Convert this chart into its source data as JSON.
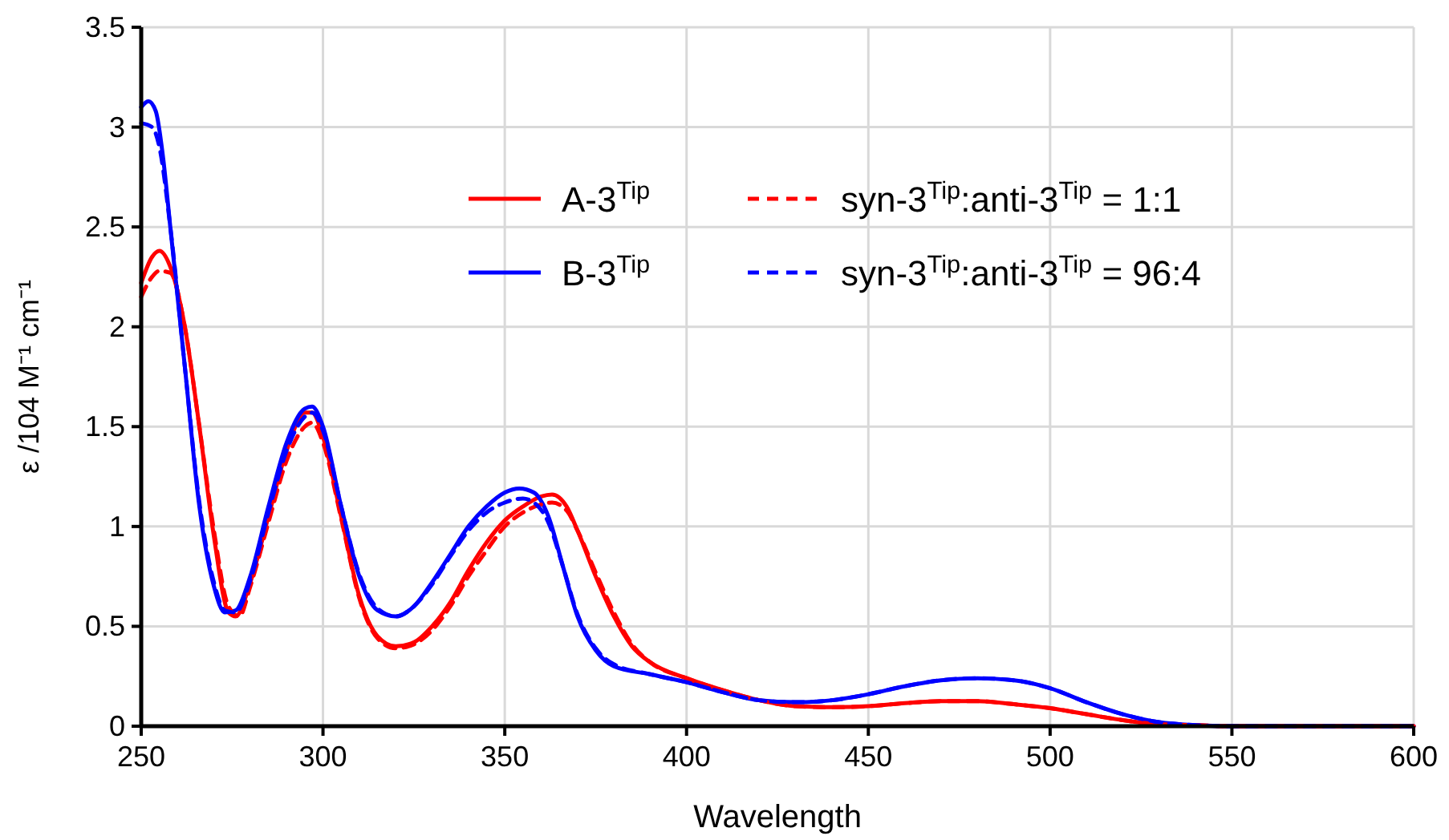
{
  "chart_data": {
    "type": "line",
    "xlabel": "Wavelength",
    "ylabel": "ε /104 M⁻¹ cm⁻¹",
    "xlim": [
      250,
      600
    ],
    "ylim": [
      0,
      3.5
    ],
    "xticks": [
      250,
      300,
      350,
      400,
      450,
      500,
      550,
      600
    ],
    "yticks": [
      0,
      0.5,
      1,
      1.5,
      2,
      2.5,
      3,
      3.5
    ],
    "grid": true,
    "legend": "top right",
    "marker": "none",
    "series": [
      {
        "name": "A-3$^{Tip}$",
        "color": "#ff0000",
        "line_style": "solid",
        "x": [
          250,
          253,
          255,
          258,
          262,
          266,
          270,
          274,
          276,
          280,
          285,
          290,
          295,
          297,
          300,
          305,
          310,
          315,
          320,
          325,
          330,
          335,
          340,
          345,
          350,
          355,
          360,
          363,
          367,
          370,
          375,
          380,
          385,
          390,
          400,
          410,
          420,
          430,
          440,
          450,
          460,
          470,
          480,
          490,
          500,
          510,
          520,
          530,
          540,
          550,
          600
        ],
        "values": [
          2.22,
          2.35,
          2.38,
          2.3,
          2.0,
          1.5,
          0.95,
          0.57,
          0.55,
          0.72,
          1.05,
          1.38,
          1.57,
          1.57,
          1.45,
          1.05,
          0.65,
          0.45,
          0.4,
          0.42,
          0.5,
          0.62,
          0.78,
          0.92,
          1.03,
          1.1,
          1.15,
          1.16,
          1.1,
          0.98,
          0.75,
          0.55,
          0.4,
          0.32,
          0.24,
          0.18,
          0.13,
          0.1,
          0.095,
          0.1,
          0.115,
          0.125,
          0.125,
          0.11,
          0.09,
          0.06,
          0.03,
          0.01,
          0.005,
          0,
          0
        ]
      },
      {
        "name": "B-3$^{Tip}$",
        "color": "#0000ff",
        "line_style": "solid",
        "x": [
          250,
          252,
          254,
          256,
          258,
          262,
          266,
          270,
          273,
          276,
          280,
          285,
          290,
          295,
          297,
          300,
          305,
          310,
          315,
          320,
          325,
          330,
          335,
          340,
          345,
          350,
          354,
          358,
          362,
          366,
          370,
          375,
          380,
          390,
          400,
          410,
          420,
          430,
          440,
          450,
          460,
          470,
          480,
          490,
          500,
          510,
          520,
          530,
          540,
          550,
          600
        ],
        "values": [
          3.1,
          3.13,
          3.08,
          2.85,
          2.5,
          1.8,
          1.1,
          0.7,
          0.57,
          0.58,
          0.75,
          1.1,
          1.42,
          1.59,
          1.6,
          1.5,
          1.1,
          0.75,
          0.58,
          0.55,
          0.6,
          0.72,
          0.86,
          1.0,
          1.1,
          1.17,
          1.19,
          1.17,
          1.05,
          0.8,
          0.55,
          0.38,
          0.3,
          0.26,
          0.22,
          0.17,
          0.13,
          0.12,
          0.13,
          0.16,
          0.2,
          0.23,
          0.24,
          0.23,
          0.19,
          0.12,
          0.06,
          0.02,
          0.005,
          0,
          0
        ]
      },
      {
        "name": "syn-3$^{Tip}$:anti-3$^{Tip}$ = 1:1",
        "color": "#ff0000",
        "line_style": "dashed",
        "x": [
          250,
          253,
          255,
          258,
          262,
          266,
          270,
          274,
          277,
          280,
          285,
          290,
          295,
          297,
          300,
          305,
          310,
          315,
          320,
          325,
          330,
          335,
          340,
          345,
          350,
          355,
          360,
          363,
          367,
          370,
          375,
          380,
          385,
          390,
          400,
          410,
          420,
          430,
          440,
          450,
          460,
          470,
          480,
          490,
          500,
          510,
          520,
          530,
          540,
          550,
          600
        ],
        "values": [
          2.15,
          2.25,
          2.28,
          2.27,
          2.0,
          1.5,
          0.98,
          0.6,
          0.55,
          0.7,
          1.02,
          1.33,
          1.5,
          1.52,
          1.42,
          1.04,
          0.64,
          0.44,
          0.39,
          0.41,
          0.48,
          0.6,
          0.75,
          0.88,
          1.0,
          1.07,
          1.11,
          1.12,
          1.08,
          0.98,
          0.77,
          0.57,
          0.41,
          0.32,
          0.24,
          0.18,
          0.13,
          0.1,
          0.095,
          0.1,
          0.115,
          0.125,
          0.125,
          0.11,
          0.09,
          0.06,
          0.03,
          0.01,
          0.005,
          0,
          0
        ]
      },
      {
        "name": "syn-3$^{Tip}$:anti-3$^{Tip}$ = 96:4",
        "color": "#0000ff",
        "line_style": "dashed",
        "x": [
          250,
          253,
          255,
          258,
          262,
          266,
          270,
          273,
          276,
          280,
          285,
          290,
          295,
          297,
          300,
          305,
          310,
          315,
          320,
          325,
          330,
          335,
          340,
          345,
          350,
          355,
          358,
          362,
          366,
          370,
          375,
          380,
          390,
          400,
          410,
          420,
          430,
          440,
          450,
          460,
          470,
          480,
          490,
          500,
          510,
          520,
          530,
          540,
          550,
          600
        ],
        "values": [
          3.02,
          3.0,
          2.9,
          2.5,
          1.8,
          1.12,
          0.72,
          0.58,
          0.57,
          0.73,
          1.07,
          1.38,
          1.55,
          1.57,
          1.48,
          1.1,
          0.76,
          0.59,
          0.55,
          0.6,
          0.71,
          0.85,
          0.98,
          1.07,
          1.12,
          1.14,
          1.12,
          1.02,
          0.8,
          0.56,
          0.39,
          0.31,
          0.26,
          0.22,
          0.17,
          0.13,
          0.12,
          0.13,
          0.16,
          0.2,
          0.23,
          0.24,
          0.23,
          0.19,
          0.12,
          0.06,
          0.02,
          0.005,
          0,
          0
        ]
      }
    ]
  }
}
